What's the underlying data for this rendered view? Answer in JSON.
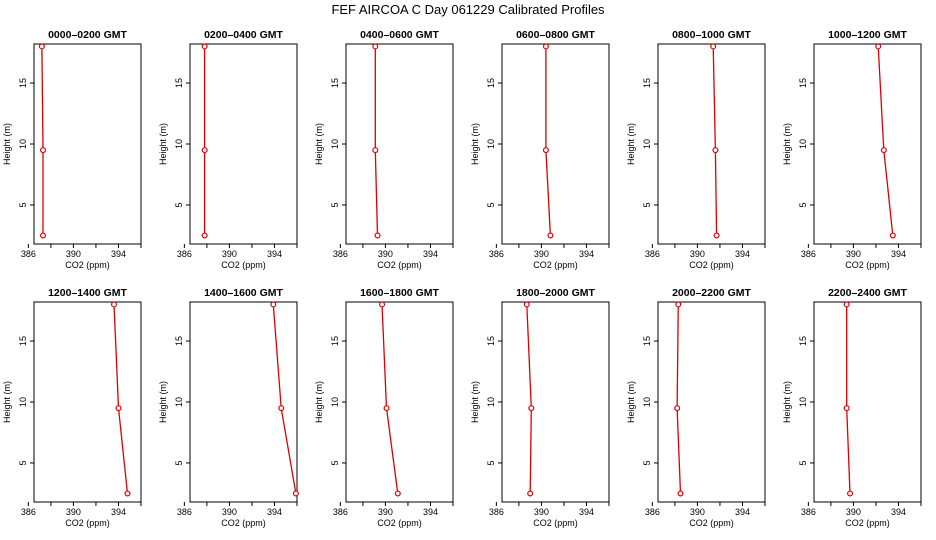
{
  "title": "FEF AIRCOA C  Day 061229  Calibrated Profiles",
  "colors": {
    "profile": "#dd0000",
    "axis": "#000000"
  },
  "chart_data": [
    {
      "type": "line",
      "title": "0000–0200 GMT",
      "xlabel": "CO2 (ppm)",
      "ylabel": "Height (m)",
      "xlim": [
        386.5,
        396
      ],
      "ylim": [
        1.8,
        18.2
      ],
      "xticks": [
        386,
        390,
        394
      ],
      "yticks": [
        5,
        10,
        15
      ],
      "x": [
        387.2,
        387.3,
        387.3
      ],
      "y": [
        18.0,
        9.5,
        2.5
      ]
    },
    {
      "type": "line",
      "title": "0200–0400 GMT",
      "xlabel": "CO2 (ppm)",
      "ylabel": "Height (m)",
      "xlim": [
        386.5,
        396
      ],
      "ylim": [
        1.8,
        18.2
      ],
      "xticks": [
        386,
        390,
        394
      ],
      "yticks": [
        5,
        10,
        15
      ],
      "x": [
        387.8,
        387.8,
        387.8
      ],
      "y": [
        18.0,
        9.5,
        2.5
      ]
    },
    {
      "type": "line",
      "title": "0400–0600 GMT",
      "xlabel": "CO2 (ppm)",
      "ylabel": "Height (m)",
      "xlim": [
        386.5,
        396
      ],
      "ylim": [
        1.8,
        18.2
      ],
      "xticks": [
        386,
        390,
        394
      ],
      "yticks": [
        5,
        10,
        15
      ],
      "x": [
        389.1,
        389.1,
        389.3
      ],
      "y": [
        18.0,
        9.5,
        2.5
      ]
    },
    {
      "type": "line",
      "title": "0600–0800 GMT",
      "xlabel": "CO2 (ppm)",
      "ylabel": "Height (m)",
      "xlim": [
        386.5,
        396
      ],
      "ylim": [
        1.8,
        18.2
      ],
      "xticks": [
        386,
        390,
        394
      ],
      "yticks": [
        5,
        10,
        15
      ],
      "x": [
        390.4,
        390.4,
        390.8
      ],
      "y": [
        18.0,
        9.5,
        2.5
      ]
    },
    {
      "type": "line",
      "title": "0800–1000 GMT",
      "xlabel": "CO2 (ppm)",
      "ylabel": "Height (m)",
      "xlim": [
        386.5,
        396
      ],
      "ylim": [
        1.8,
        18.2
      ],
      "xticks": [
        386,
        390,
        394
      ],
      "yticks": [
        5,
        10,
        15
      ],
      "x": [
        391.4,
        391.6,
        391.7
      ],
      "y": [
        18.0,
        9.5,
        2.5
      ]
    },
    {
      "type": "line",
      "title": "1000–1200 GMT",
      "xlabel": "CO2 (ppm)",
      "ylabel": "Height (m)",
      "xlim": [
        386.5,
        396
      ],
      "ylim": [
        1.8,
        18.2
      ],
      "xticks": [
        386,
        390,
        394
      ],
      "yticks": [
        5,
        10,
        15
      ],
      "x": [
        392.2,
        392.7,
        393.5
      ],
      "y": [
        18.0,
        9.5,
        2.5
      ]
    },
    {
      "type": "line",
      "title": "1200–1400 GMT",
      "xlabel": "CO2 (ppm)",
      "ylabel": "Height (m)",
      "xlim": [
        386.5,
        396
      ],
      "ylim": [
        1.8,
        18.2
      ],
      "xticks": [
        386,
        390,
        394
      ],
      "yticks": [
        5,
        10,
        15
      ],
      "x": [
        393.6,
        394.0,
        394.8
      ],
      "y": [
        18.0,
        9.5,
        2.5
      ]
    },
    {
      "type": "line",
      "title": "1400–1600 GMT",
      "xlabel": "CO2 (ppm)",
      "ylabel": "Height (m)",
      "xlim": [
        386.5,
        396
      ],
      "ylim": [
        1.8,
        18.2
      ],
      "xticks": [
        386,
        390,
        394
      ],
      "yticks": [
        5,
        10,
        15
      ],
      "x": [
        393.9,
        394.6,
        395.9
      ],
      "y": [
        18.0,
        9.5,
        2.5
      ]
    },
    {
      "type": "line",
      "title": "1600–1800 GMT",
      "xlabel": "CO2 (ppm)",
      "ylabel": "Height (m)",
      "xlim": [
        386.5,
        396
      ],
      "ylim": [
        1.8,
        18.2
      ],
      "xticks": [
        386,
        390,
        394
      ],
      "yticks": [
        5,
        10,
        15
      ],
      "x": [
        389.7,
        390.1,
        391.1
      ],
      "y": [
        18.0,
        9.5,
        2.5
      ]
    },
    {
      "type": "line",
      "title": "1800–2000 GMT",
      "xlabel": "CO2 (ppm)",
      "ylabel": "Height (m)",
      "xlim": [
        386.5,
        396
      ],
      "ylim": [
        1.8,
        18.2
      ],
      "xticks": [
        386,
        390,
        394
      ],
      "yticks": [
        5,
        10,
        15
      ],
      "x": [
        388.7,
        389.1,
        389.0
      ],
      "y": [
        18.0,
        9.5,
        2.5
      ]
    },
    {
      "type": "line",
      "title": "2000–2200 GMT",
      "xlabel": "CO2 (ppm)",
      "ylabel": "Height (m)",
      "xlim": [
        386.5,
        396
      ],
      "ylim": [
        1.8,
        18.2
      ],
      "xticks": [
        386,
        390,
        394
      ],
      "yticks": [
        5,
        10,
        15
      ],
      "x": [
        388.3,
        388.2,
        388.5
      ],
      "y": [
        18.0,
        9.5,
        2.5
      ]
    },
    {
      "type": "line",
      "title": "2200–2400 GMT",
      "xlabel": "CO2 (ppm)",
      "ylabel": "Height (m)",
      "xlim": [
        386.5,
        396
      ],
      "ylim": [
        1.8,
        18.2
      ],
      "xticks": [
        386,
        390,
        394
      ],
      "yticks": [
        5,
        10,
        15
      ],
      "x": [
        389.4,
        389.4,
        389.7
      ],
      "y": [
        18.0,
        9.5,
        2.5
      ]
    }
  ]
}
